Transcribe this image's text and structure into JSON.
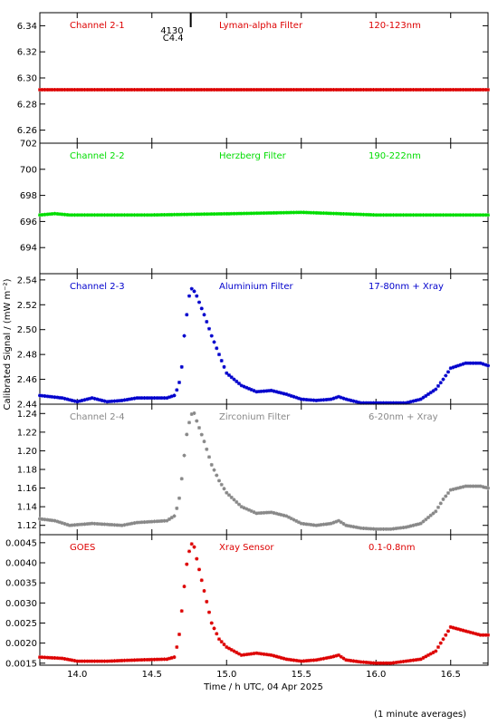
{
  "chart_data": {
    "type": "scatter",
    "xlabel": "Time / h UTC, 04 Apr 2025",
    "ylabel": "Calibrated Signal / (mW m⁻²)",
    "footnote": "(1 minute averages)",
    "xlim": [
      13.75,
      16.75
    ],
    "xticks": [
      14.0,
      14.5,
      15.0,
      15.5,
      16.0,
      16.5
    ],
    "xtick_labels": [
      "14.0",
      "14.5",
      "15.0",
      "15.5",
      "16.0",
      "16.5"
    ],
    "flare_marker": {
      "x": 14.76,
      "label_top": "4130",
      "label_bottom": "C4.4"
    },
    "panels": [
      {
        "name": "Channel 2-1",
        "filter": "Lyman-alpha Filter",
        "band": "120-123nm",
        "color": "#dd0000",
        "ylim": [
          6.25,
          6.35
        ],
        "yticks": [
          6.26,
          6.28,
          6.3,
          6.32,
          6.34
        ],
        "ytick_labels": [
          "6.26",
          "6.28",
          "6.30",
          "6.32",
          "6.34"
        ],
        "points": [
          [
            13.75,
            6.291
          ],
          [
            16.75,
            6.291
          ]
        ]
      },
      {
        "name": "Channel 2-2",
        "filter": "Herzberg Filter",
        "band": "190-222nm",
        "color": "#00dd00",
        "ylim": [
          692,
          702
        ],
        "yticks": [
          694,
          696,
          698,
          700,
          702
        ],
        "ytick_labels": [
          "694",
          "696",
          "698",
          "700",
          "702"
        ],
        "points": [
          [
            13.75,
            696.5
          ],
          [
            13.85,
            696.6
          ],
          [
            13.95,
            696.5
          ],
          [
            14.5,
            696.5
          ],
          [
            15.05,
            696.6
          ],
          [
            15.5,
            696.7
          ],
          [
            16.0,
            696.5
          ],
          [
            16.75,
            696.5
          ]
        ]
      },
      {
        "name": "Channel 2-3",
        "filter": "Aluminium Filter",
        "band": "17-80nm + Xray",
        "color": "#0000cc",
        "ylim": [
          2.44,
          2.545
        ],
        "yticks": [
          2.44,
          2.46,
          2.48,
          2.5,
          2.52,
          2.54
        ],
        "ytick_labels": [
          "2.44",
          "2.46",
          "2.48",
          "2.50",
          "2.52",
          "2.54"
        ],
        "points": [
          [
            13.75,
            2.447
          ],
          [
            13.9,
            2.445
          ],
          [
            14.0,
            2.442
          ],
          [
            14.1,
            2.445
          ],
          [
            14.2,
            2.442
          ],
          [
            14.3,
            2.443
          ],
          [
            14.4,
            2.445
          ],
          [
            14.6,
            2.445
          ],
          [
            14.65,
            2.447
          ],
          [
            14.68,
            2.455
          ],
          [
            14.7,
            2.47
          ],
          [
            14.72,
            2.5
          ],
          [
            14.75,
            2.527
          ],
          [
            14.77,
            2.534
          ],
          [
            14.8,
            2.527
          ],
          [
            14.85,
            2.512
          ],
          [
            14.9,
            2.495
          ],
          [
            14.95,
            2.48
          ],
          [
            15.0,
            2.465
          ],
          [
            15.1,
            2.455
          ],
          [
            15.2,
            2.45
          ],
          [
            15.3,
            2.451
          ],
          [
            15.4,
            2.448
          ],
          [
            15.5,
            2.444
          ],
          [
            15.6,
            2.443
          ],
          [
            15.7,
            2.444
          ],
          [
            15.75,
            2.446
          ],
          [
            15.8,
            2.444
          ],
          [
            15.9,
            2.441
          ],
          [
            16.0,
            2.441
          ],
          [
            16.1,
            2.441
          ],
          [
            16.2,
            2.441
          ],
          [
            16.3,
            2.444
          ],
          [
            16.4,
            2.452
          ],
          [
            16.45,
            2.46
          ],
          [
            16.5,
            2.469
          ],
          [
            16.6,
            2.473
          ],
          [
            16.7,
            2.473
          ],
          [
            16.75,
            2.471
          ]
        ]
      },
      {
        "name": "Channel 2-4",
        "filter": "Zirconium Filter",
        "band": "6-20nm + Xray",
        "color": "#888888",
        "ylim": [
          1.11,
          1.25
        ],
        "yticks": [
          1.12,
          1.14,
          1.16,
          1.18,
          1.2,
          1.22,
          1.24
        ],
        "ytick_labels": [
          "1.12",
          "1.14",
          "1.16",
          "1.18",
          "1.20",
          "1.22",
          "1.24"
        ],
        "points": [
          [
            13.75,
            1.127
          ],
          [
            13.85,
            1.125
          ],
          [
            13.95,
            1.12
          ],
          [
            14.1,
            1.122
          ],
          [
            14.2,
            1.121
          ],
          [
            14.3,
            1.12
          ],
          [
            14.4,
            1.123
          ],
          [
            14.6,
            1.125
          ],
          [
            14.65,
            1.13
          ],
          [
            14.68,
            1.145
          ],
          [
            14.7,
            1.17
          ],
          [
            14.73,
            1.215
          ],
          [
            14.76,
            1.238
          ],
          [
            14.78,
            1.242
          ],
          [
            14.8,
            1.232
          ],
          [
            14.85,
            1.21
          ],
          [
            14.9,
            1.185
          ],
          [
            14.95,
            1.168
          ],
          [
            15.0,
            1.155
          ],
          [
            15.1,
            1.14
          ],
          [
            15.2,
            1.133
          ],
          [
            15.3,
            1.134
          ],
          [
            15.4,
            1.13
          ],
          [
            15.5,
            1.122
          ],
          [
            15.6,
            1.12
          ],
          [
            15.7,
            1.122
          ],
          [
            15.75,
            1.125
          ],
          [
            15.8,
            1.12
          ],
          [
            15.9,
            1.117
          ],
          [
            16.0,
            1.116
          ],
          [
            16.1,
            1.116
          ],
          [
            16.2,
            1.118
          ],
          [
            16.3,
            1.122
          ],
          [
            16.4,
            1.135
          ],
          [
            16.45,
            1.148
          ],
          [
            16.5,
            1.158
          ],
          [
            16.6,
            1.162
          ],
          [
            16.7,
            1.162
          ],
          [
            16.75,
            1.16
          ]
        ]
      },
      {
        "name": "GOES",
        "filter": "Xray Sensor",
        "band": "0.1-0.8nm",
        "color": "#dd0000",
        "ylim": [
          0.00145,
          0.0047
        ],
        "yticks": [
          0.0015,
          0.002,
          0.0025,
          0.003,
          0.0035,
          0.004,
          0.0045
        ],
        "ytick_labels": [
          "0.0015",
          "0.0020",
          "0.0025",
          "0.0030",
          "0.0035",
          "0.0040",
          "0.0045"
        ],
        "points": [
          [
            13.75,
            0.00165
          ],
          [
            13.9,
            0.00162
          ],
          [
            14.0,
            0.00155
          ],
          [
            14.2,
            0.00155
          ],
          [
            14.4,
            0.00158
          ],
          [
            14.6,
            0.0016
          ],
          [
            14.65,
            0.00165
          ],
          [
            14.68,
            0.0021
          ],
          [
            14.7,
            0.0028
          ],
          [
            14.73,
            0.0039
          ],
          [
            14.76,
            0.00448
          ],
          [
            14.78,
            0.00445
          ],
          [
            14.8,
            0.0041
          ],
          [
            14.85,
            0.0033
          ],
          [
            14.9,
            0.0025
          ],
          [
            14.95,
            0.0021
          ],
          [
            15.0,
            0.0019
          ],
          [
            15.1,
            0.0017
          ],
          [
            15.2,
            0.00175
          ],
          [
            15.3,
            0.0017
          ],
          [
            15.4,
            0.0016
          ],
          [
            15.5,
            0.00155
          ],
          [
            15.6,
            0.00158
          ],
          [
            15.7,
            0.00165
          ],
          [
            15.75,
            0.0017
          ],
          [
            15.8,
            0.00158
          ],
          [
            15.9,
            0.00153
          ],
          [
            16.0,
            0.0015
          ],
          [
            16.1,
            0.0015
          ],
          [
            16.2,
            0.00155
          ],
          [
            16.3,
            0.0016
          ],
          [
            16.4,
            0.0018
          ],
          [
            16.45,
            0.0021
          ],
          [
            16.5,
            0.0024
          ],
          [
            16.6,
            0.0023
          ],
          [
            16.7,
            0.0022
          ],
          [
            16.75,
            0.0022
          ]
        ]
      }
    ]
  }
}
